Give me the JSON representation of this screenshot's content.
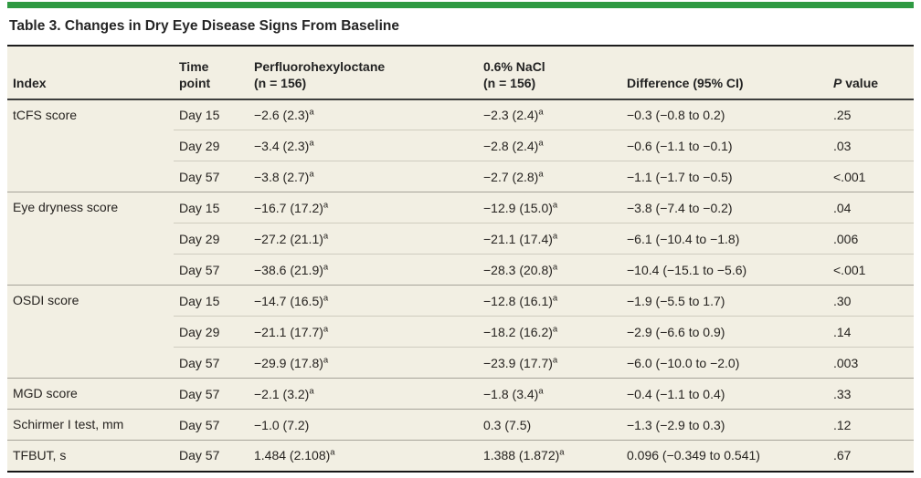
{
  "title": "Table 3. Changes in Dry Eye Disease Signs From Baseline",
  "colors": {
    "accent_green": "#2f9a43",
    "table_background": "#f2efe3",
    "title_rule": "#1c1c1c",
    "header_border": "#3d3d3d",
    "group_separator": "#a6a399",
    "row_separator": "#cfccbf"
  },
  "table": {
    "columns": {
      "index": "Index",
      "time_l1": "Time",
      "time_l2": "point",
      "pfho_l1": "Perfluorohexyloctane",
      "pfho_l2": "(n = 156)",
      "nacl_l1": "0.6% NaCl",
      "nacl_l2": "(n = 156)",
      "diff": "Difference (95% CI)",
      "p_italic": "P",
      "p_rest": "value"
    },
    "footnote_marker": "a",
    "groups": [
      {
        "index": "tCFS score",
        "rows": [
          {
            "time": "Day 15",
            "pfho": "−2.6 (2.3)",
            "pfho_sup": "a",
            "nacl": "−2.3 (2.4)",
            "nacl_sup": "a",
            "diff": "−0.3 (−0.8 to 0.2)",
            "p": ".25"
          },
          {
            "time": "Day 29",
            "pfho": "−3.4 (2.3)",
            "pfho_sup": "a",
            "nacl": "−2.8 (2.4)",
            "nacl_sup": "a",
            "diff": "−0.6 (−1.1 to −0.1)",
            "p": ".03"
          },
          {
            "time": "Day 57",
            "pfho": "−3.8 (2.7)",
            "pfho_sup": "a",
            "nacl": "−2.7 (2.8)",
            "nacl_sup": "a",
            "diff": "−1.1 (−1.7 to −0.5)",
            "p": "<.001"
          }
        ]
      },
      {
        "index": "Eye dryness score",
        "rows": [
          {
            "time": "Day 15",
            "pfho": "−16.7 (17.2)",
            "pfho_sup": "a",
            "nacl": "−12.9 (15.0)",
            "nacl_sup": "a",
            "diff": "−3.8 (−7.4 to −0.2)",
            "p": ".04"
          },
          {
            "time": "Day 29",
            "pfho": "−27.2 (21.1)",
            "pfho_sup": "a",
            "nacl": "−21.1 (17.4)",
            "nacl_sup": "a",
            "diff": "−6.1 (−10.4 to −1.8)",
            "p": ".006"
          },
          {
            "time": "Day 57",
            "pfho": "−38.6 (21.9)",
            "pfho_sup": "a",
            "nacl": "−28.3 (20.8)",
            "nacl_sup": "a",
            "diff": "−10.4 (−15.1 to −5.6)",
            "p": "<.001"
          }
        ]
      },
      {
        "index": "OSDI score",
        "rows": [
          {
            "time": "Day 15",
            "pfho": "−14.7 (16.5)",
            "pfho_sup": "a",
            "nacl": "−12.8 (16.1)",
            "nacl_sup": "a",
            "diff": "−1.9 (−5.5 to 1.7)",
            "p": ".30"
          },
          {
            "time": "Day 29",
            "pfho": "−21.1 (17.7)",
            "pfho_sup": "a",
            "nacl": "−18.2 (16.2)",
            "nacl_sup": "a",
            "diff": "−2.9 (−6.6 to 0.9)",
            "p": ".14"
          },
          {
            "time": "Day 57",
            "pfho": "−29.9 (17.8)",
            "pfho_sup": "a",
            "nacl": "−23.9 (17.7)",
            "nacl_sup": "a",
            "diff": "−6.0 (−10.0 to −2.0)",
            "p": ".003"
          }
        ]
      },
      {
        "index": "MGD score",
        "rows": [
          {
            "time": "Day 57",
            "pfho": "−2.1 (3.2)",
            "pfho_sup": "a",
            "nacl": "−1.8 (3.4)",
            "nacl_sup": "a",
            "diff": "−0.4 (−1.1 to 0.4)",
            "p": ".33"
          }
        ]
      },
      {
        "index": "Schirmer I test, mm",
        "rows": [
          {
            "time": "Day 57",
            "pfho": "−1.0 (7.2)",
            "pfho_sup": "",
            "nacl": "0.3 (7.5)",
            "nacl_sup": "",
            "diff": "−1.3 (−2.9 to 0.3)",
            "p": ".12"
          }
        ]
      },
      {
        "index": "TFBUT, s",
        "rows": [
          {
            "time": "Day 57",
            "pfho": "1.484 (2.108)",
            "pfho_sup": "a",
            "nacl": "1.388 (1.872)",
            "nacl_sup": "a",
            "diff": "0.096 (−0.349 to 0.541)",
            "p": ".67"
          }
        ]
      }
    ]
  }
}
